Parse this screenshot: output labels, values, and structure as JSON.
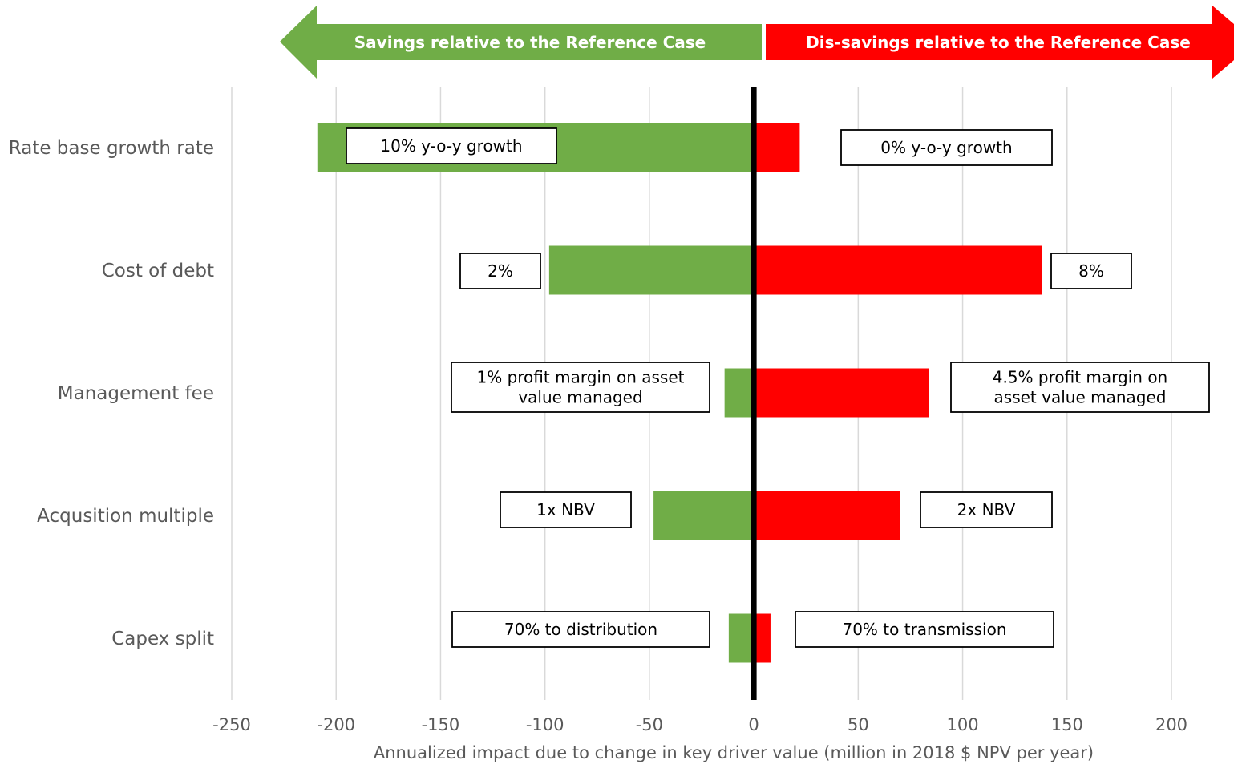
{
  "colors": {
    "savings": "#70AD47",
    "dissavings": "#FF0000",
    "grid": "#D9D9D9",
    "zero_line": "#000000",
    "text": "#595959"
  },
  "banners": {
    "savings": "Savings relative to the Reference Case",
    "dissavings": "Dis-savings relative to the Reference Case"
  },
  "chart_data": {
    "type": "bar",
    "orientation": "horizontal",
    "subtype": "tornado",
    "title": "",
    "xlabel": "Annualized impact due to change in key driver value (million in 2018 $ NPV per year)",
    "ylabel": "",
    "xlim": [
      -250,
      200
    ],
    "xticks": [
      -250,
      -200,
      -150,
      -100,
      -50,
      0,
      50,
      100,
      150,
      200
    ],
    "grid": true,
    "categories": [
      "Rate base growth rate",
      "Cost of debt",
      "Management fee",
      "Acqusition multiple",
      "Capex split"
    ],
    "series": [
      {
        "color": "#70AD47",
        "values": [
          -209,
          -98,
          -14,
          -48,
          -12
        ]
      },
      {
        "color": "#FF0000",
        "values": [
          22,
          138,
          84,
          70,
          8
        ]
      }
    ],
    "annotations": [
      {
        "category": "Rate base growth rate",
        "low": [
          "10% y-o-y growth"
        ],
        "high": [
          "0% y-o-y growth"
        ]
      },
      {
        "category": "Cost of debt",
        "low": [
          "2%"
        ],
        "high": [
          "8%"
        ]
      },
      {
        "category": "Management fee",
        "low": [
          "1% profit margin on asset",
          "value managed"
        ],
        "high": [
          "4.5% profit margin on",
          "asset value managed"
        ]
      },
      {
        "category": "Acqusition multiple",
        "low": [
          "1x NBV"
        ],
        "high": [
          "2x NBV"
        ]
      },
      {
        "category": "Capex split",
        "low": [
          "70% to distribution"
        ],
        "high": [
          "70% to transmission"
        ]
      }
    ]
  }
}
